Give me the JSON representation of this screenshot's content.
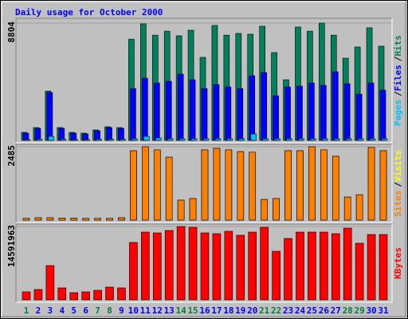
{
  "title": "Daily usage for October 2000",
  "legend_separator": "/",
  "chart_data": [
    {
      "type": "bar",
      "ylim": [
        0,
        8804
      ],
      "yticks": [
        8804
      ],
      "series": [
        {
          "name": "Hits",
          "color": "#00805c",
          "values": [
            600,
            960,
            3700,
            960,
            600,
            540,
            780,
            1020,
            960,
            7600,
            8750,
            7900,
            8200,
            7850,
            8270,
            6230,
            8630,
            7900,
            8030,
            7970,
            8570,
            6590,
            4550,
            8510,
            8200,
            8804,
            7900,
            6170,
            7010,
            8450,
            7070
          ]
        },
        {
          "name": "Files",
          "color": "#0000ff",
          "values": [
            540,
            900,
            3590,
            900,
            540,
            480,
            720,
            960,
            900,
            3890,
            4670,
            4310,
            4430,
            4970,
            4550,
            3890,
            4190,
            4010,
            3890,
            4850,
            5090,
            3350,
            4010,
            4070,
            4310,
            4130,
            5150,
            4250,
            3470,
            4310,
            3770
          ]
        },
        {
          "name": "Pages",
          "color": "#00c0ff",
          "values": [
            60,
            90,
            300,
            90,
            60,
            60,
            90,
            90,
            90,
            120,
            300,
            180,
            120,
            120,
            120,
            120,
            120,
            120,
            120,
            480,
            120,
            120,
            120,
            120,
            120,
            120,
            120,
            120,
            120,
            120,
            120
          ]
        }
      ]
    },
    {
      "type": "bar",
      "ylim": [
        0,
        2485
      ],
      "yticks": [
        2485
      ],
      "series": [
        {
          "name": "Visits",
          "color": "#ffff00",
          "values": [
            60,
            80,
            80,
            70,
            70,
            60,
            60,
            60,
            80,
            2350,
            2485,
            2380,
            2130,
            675,
            730,
            2380,
            2430,
            2380,
            2320,
            2300,
            700,
            730,
            2350,
            2350,
            2485,
            2380,
            2160,
            780,
            860,
            2460,
            2350
          ]
        },
        {
          "name": "Sites",
          "color": "#ff8000",
          "values": [
            60,
            80,
            80,
            70,
            70,
            60,
            60,
            60,
            80,
            2350,
            2485,
            2380,
            2130,
            675,
            730,
            2380,
            2430,
            2380,
            2320,
            2300,
            700,
            730,
            2350,
            2350,
            2485,
            2380,
            2160,
            780,
            860,
            2460,
            2350
          ]
        }
      ]
    },
    {
      "type": "bar",
      "ylim": [
        0,
        14591963
      ],
      "yticks": [
        14591963
      ],
      "categories": [
        "1",
        "2",
        "3",
        "4",
        "5",
        "6",
        "7",
        "8",
        "9",
        "10",
        "11",
        "12",
        "13",
        "14",
        "15",
        "16",
        "17",
        "18",
        "19",
        "20",
        "21",
        "22",
        "23",
        "24",
        "25",
        "26",
        "27",
        "28",
        "29",
        "30",
        "31"
      ],
      "category_colors": [
        "#008040",
        "#0000ff",
        "#0000ff",
        "#0000ff",
        "#0000ff",
        "#0000ff",
        "#008040",
        "#008040",
        "#0000ff",
        "#0000ff",
        "#0000ff",
        "#0000ff",
        "#0000ff",
        "#008040",
        "#008040",
        "#0000ff",
        "#0000ff",
        "#0000ff",
        "#0000ff",
        "#0000ff",
        "#008040",
        "#008040",
        "#0000ff",
        "#0000ff",
        "#0000ff",
        "#0000ff",
        "#0000ff",
        "#008040",
        "#008040",
        "#0000ff",
        "#0000ff"
      ],
      "series": [
        {
          "name": "KBytes",
          "color": "#ff0000",
          "values": [
            1590000,
            2060000,
            6820000,
            2380000,
            1430000,
            1590000,
            1900000,
            2540000,
            2380000,
            11420000,
            13480000,
            13320000,
            13800000,
            14591963,
            14430000,
            13320000,
            13160000,
            13640000,
            12850000,
            13480000,
            14430000,
            9670000,
            12210000,
            13480000,
            13480000,
            13480000,
            13160000,
            14270000,
            11260000,
            13000000,
            13000000
          ]
        }
      ]
    }
  ]
}
